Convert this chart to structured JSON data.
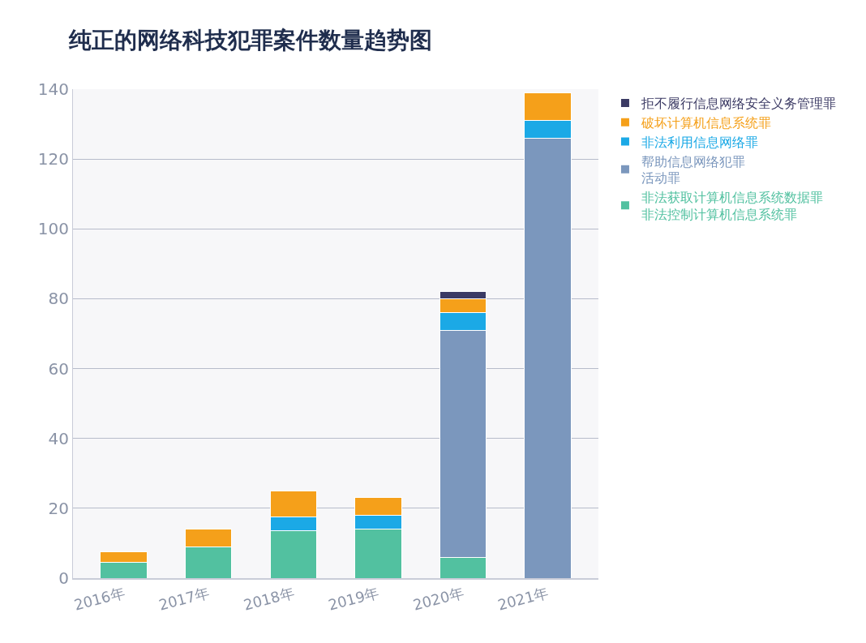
{
  "chart_data": {
    "type": "bar",
    "title": "纯正的网络科技犯罪案件数量趋势图",
    "categories": [
      "2016年",
      "2017年",
      "2018年",
      "2019年",
      "2020年",
      "2021年"
    ],
    "stacked": true,
    "ylim": [
      0,
      140
    ],
    "yticks": [
      0,
      20,
      40,
      60,
      80,
      100,
      120,
      140
    ],
    "grid": "y",
    "legend": "right",
    "series": [
      {
        "name": "非法获取计算机信息系统数据罪非法控制计算机信息系统罪",
        "color": "#52c1a0",
        "values": [
          4.5,
          9,
          13.5,
          14,
          6,
          null
        ]
      },
      {
        "name": "帮助信息网络犯罪活动罪",
        "color": "#7b97bd",
        "values": [
          null,
          null,
          null,
          null,
          65,
          126
        ]
      },
      {
        "name": "非法利用信息网络罪",
        "color": "#1ba9e6",
        "values": [
          null,
          null,
          4,
          4,
          5,
          5
        ]
      },
      {
        "name": "破坏计算机信息系统罪",
        "color": "#f5a01a",
        "values": [
          3,
          5,
          7.5,
          5,
          4,
          8
        ]
      },
      {
        "name": "拒不履行信息网络安全义务管理罪",
        "color": "#3b3a64",
        "values": [
          null,
          null,
          null,
          null,
          2,
          null
        ]
      }
    ]
  }
}
